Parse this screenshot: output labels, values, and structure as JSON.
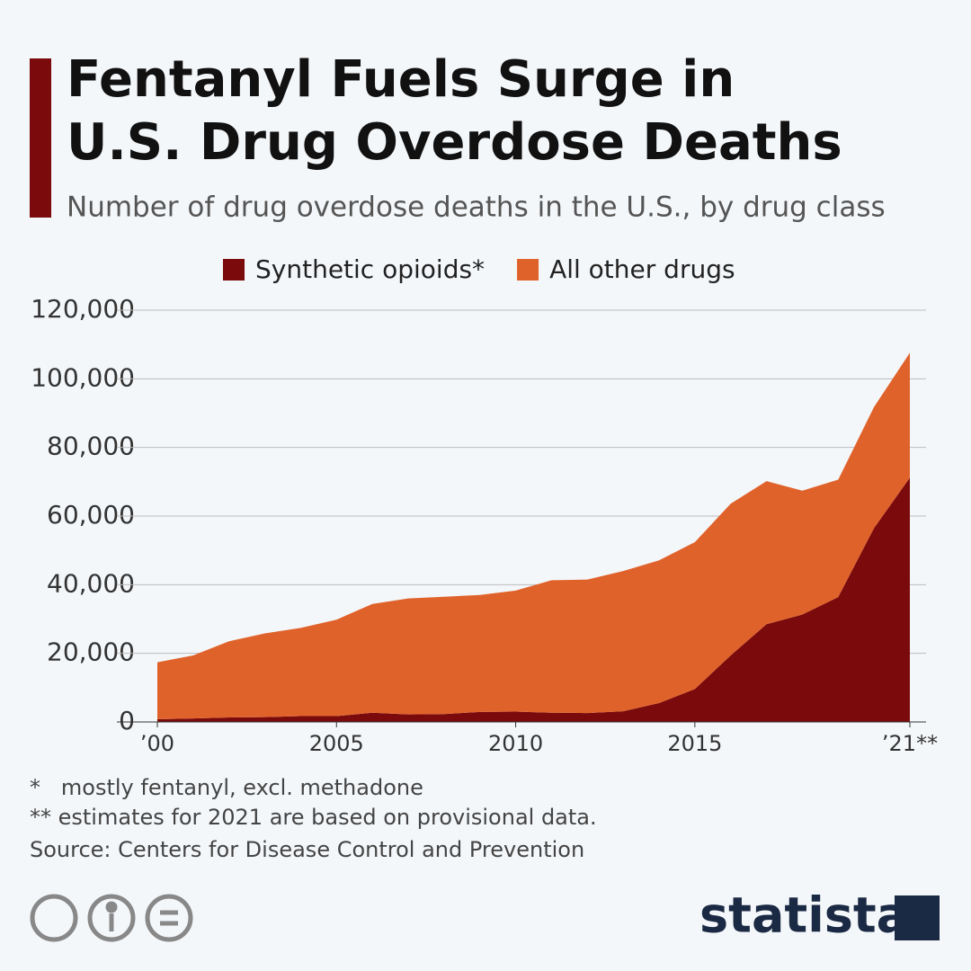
{
  "chart_data": {
    "type": "area",
    "stacked": true,
    "title_lines": [
      "Fentanyl Fuels Surge in",
      "U.S. Drug Overdose Deaths"
    ],
    "subtitle": "Number of drug overdose deaths in the U.S., by drug class",
    "x": [
      2000,
      2001,
      2002,
      2003,
      2004,
      2005,
      2006,
      2007,
      2008,
      2009,
      2010,
      2011,
      2012,
      2013,
      2014,
      2015,
      2016,
      2017,
      2018,
      2019,
      2020,
      2021
    ],
    "series": [
      {
        "name": "Synthetic opioids*",
        "color": "#7a0a0c",
        "values": [
          800,
          1000,
          1300,
          1400,
          1700,
          1700,
          2700,
          2200,
          2300,
          2900,
          3000,
          2700,
          2600,
          3100,
          5500,
          9600,
          19400,
          28500,
          31300,
          36400,
          56500,
          71200
        ]
      },
      {
        "name": "All other drugs",
        "color": "#e0622b",
        "values": [
          16600,
          18400,
          22200,
          24400,
          25700,
          28100,
          31700,
          33800,
          34200,
          34100,
          35300,
          38600,
          38900,
          40900,
          41600,
          42800,
          44200,
          41700,
          36100,
          34200,
          35300,
          36400
        ]
      }
    ],
    "xlim": [
      2000,
      2021
    ],
    "xticks": [
      {
        "value": 2000,
        "label": "’00"
      },
      2005,
      2010,
      2015,
      {
        "value": 2021,
        "label": "’21**"
      }
    ],
    "ylim": [
      0,
      120000
    ],
    "yticks": [
      0,
      {
        "value": 20000,
        "label": "20,000"
      },
      {
        "value": 40000,
        "label": "40,000"
      },
      {
        "value": 60000,
        "label": "60,000"
      },
      {
        "value": 80000,
        "label": "80,000"
      },
      {
        "value": 100000,
        "label": "100,000"
      },
      {
        "value": 120000,
        "label": "120,000"
      }
    ],
    "grid": true,
    "legend": "top",
    "notes": [
      "*   mostly fentanyl, excl. methadone",
      "** estimates for 2021 are based on provisional data.",
      "Source: Centers for Disease Control and Prevention"
    ],
    "brand": "statista"
  }
}
